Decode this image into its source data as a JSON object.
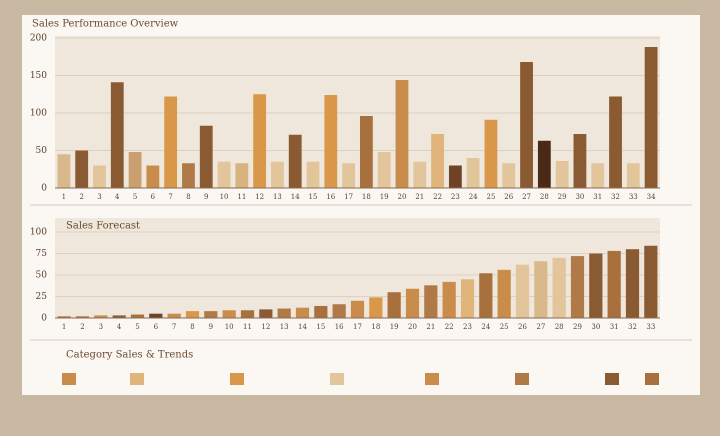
{
  "chart_data": [
    {
      "type": "bar",
      "title": "Sales Performance Overview",
      "categories": [
        "1",
        "2",
        "3",
        "4",
        "5",
        "6",
        "7",
        "8",
        "9",
        "10",
        "11",
        "12",
        "13",
        "14",
        "15",
        "16",
        "17",
        "18",
        "19",
        "20",
        "21",
        "22",
        "23",
        "24",
        "25",
        "26",
        "27",
        "28",
        "29",
        "30",
        "31",
        "32",
        "33",
        "34"
      ],
      "values": [
        45,
        50,
        30,
        141,
        48,
        30,
        122,
        33,
        83,
        35,
        33,
        125,
        35,
        71,
        35,
        124,
        33,
        96,
        48,
        144,
        35,
        72,
        30,
        40,
        91,
        33,
        168,
        63,
        36,
        72,
        33,
        122,
        33,
        188
      ],
      "colors": [
        "#d9b98c",
        "#8a5a32",
        "#e2c59a",
        "#8a5a32",
        "#caa070",
        "#c98c4a",
        "#d9974a",
        "#b07a48",
        "#8a5a32",
        "#e2c59a",
        "#d8b380",
        "#d9974a",
        "#e2c59a",
        "#8a5a32",
        "#e2c59a",
        "#d9974a",
        "#e2c59a",
        "#a8703d",
        "#e2c59a",
        "#c98c4a",
        "#e2c59a",
        "#e0b47a",
        "#6e4326",
        "#e2c59a",
        "#d9974a",
        "#e2c59a",
        "#8a5a32",
        "#4a2a16",
        "#e2c59a",
        "#8a5a32",
        "#e2c59a",
        "#8a5a32",
        "#e2c59a",
        "#8a5a32"
      ],
      "ylim": [
        0,
        200
      ],
      "yticks": [
        0,
        50,
        100,
        150,
        200
      ],
      "grid": true
    },
    {
      "type": "bar",
      "title": "Sales Forecast",
      "categories": [
        "1",
        "2",
        "3",
        "4",
        "5",
        "6",
        "7",
        "8",
        "9",
        "10",
        "11",
        "12",
        "13",
        "14",
        "15",
        "16",
        "17",
        "18",
        "19",
        "20",
        "21",
        "22",
        "23",
        "24",
        "25",
        "26",
        "27",
        "28",
        "29",
        "30",
        "31",
        "32",
        "33"
      ],
      "values": [
        2,
        2,
        3,
        3,
        4,
        5,
        5,
        8,
        8,
        9,
        9,
        10,
        11,
        12,
        14,
        16,
        20,
        24,
        30,
        34,
        38,
        42,
        45,
        52,
        56,
        62,
        66,
        70,
        72,
        75,
        78,
        80,
        84
      ],
      "colors": [
        "#b07a48",
        "#b07a48",
        "#c98c4a",
        "#8a5a32",
        "#a8703d",
        "#6e4326",
        "#c98c4a",
        "#d9974a",
        "#b07a48",
        "#c98c4a",
        "#a8703d",
        "#8a5a32",
        "#b07a48",
        "#c98c4a",
        "#a8703d",
        "#b07a48",
        "#c98c4a",
        "#d9974a",
        "#a8703d",
        "#c98c4a",
        "#b07a48",
        "#c98c4a",
        "#e0b47a",
        "#a8703d",
        "#c98c4a",
        "#e2c59a",
        "#d9b98c",
        "#e2c59a",
        "#b07a48",
        "#8a5a32",
        "#a8703d",
        "#8a5a32",
        "#8a5a32"
      ],
      "ylim": [
        0,
        100
      ],
      "yticks": [
        0,
        25,
        50,
        75,
        100
      ],
      "grid": true
    }
  ],
  "footer": {
    "title": "Category Sales & Trends"
  }
}
